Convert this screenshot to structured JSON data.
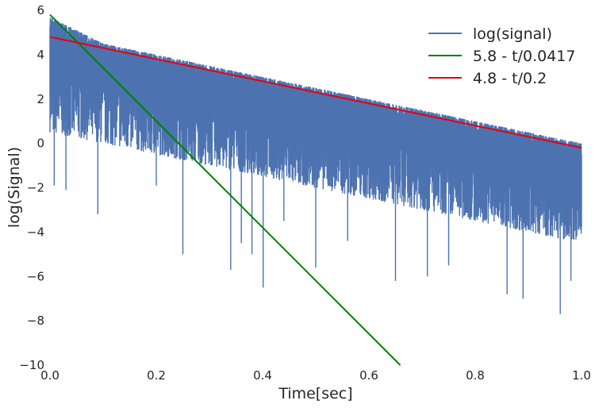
{
  "chart_data": {
    "type": "line",
    "xlabel": "Time[sec]",
    "ylabel": "log(Signal)",
    "xlim": [
      0.0,
      1.0
    ],
    "ylim": [
      -10,
      6
    ],
    "x_ticks": [
      "0.0",
      "0.2",
      "0.4",
      "0.6",
      "0.8",
      "1.0"
    ],
    "y_ticks": [
      "6",
      "4",
      "2",
      "0",
      "−2",
      "−4",
      "−6",
      "−8",
      "−10"
    ],
    "grid": false,
    "legend_position": "top-right",
    "series": [
      {
        "name": "log(signal)",
        "color": "#4c72b0",
        "envelope_x": [
          0.0,
          0.1,
          0.2,
          0.3,
          0.4,
          0.5,
          0.6,
          0.7,
          0.8,
          0.9,
          1.0
        ],
        "envelope_upper": [
          5.7,
          4.5,
          4.0,
          3.5,
          3.0,
          2.5,
          2.0,
          1.5,
          1.0,
          0.5,
          0.0
        ],
        "envelope_lower": [
          0.5,
          0.0,
          -0.5,
          -1.0,
          -1.5,
          -2.0,
          -2.5,
          -3.0,
          -3.5,
          -4.0,
          -4.5
        ],
        "spikes": [
          {
            "x": 0.008,
            "y": -1.9
          },
          {
            "x": 0.03,
            "y": -2.1
          },
          {
            "x": 0.09,
            "y": -3.2
          },
          {
            "x": 0.2,
            "y": -1.9
          },
          {
            "x": 0.25,
            "y": -5.0
          },
          {
            "x": 0.34,
            "y": -5.7
          },
          {
            "x": 0.36,
            "y": -4.5
          },
          {
            "x": 0.38,
            "y": -5.0
          },
          {
            "x": 0.401,
            "y": -6.5
          },
          {
            "x": 0.44,
            "y": -3.5
          },
          {
            "x": 0.5,
            "y": -5.6
          },
          {
            "x": 0.56,
            "y": -4.4
          },
          {
            "x": 0.65,
            "y": -6.2
          },
          {
            "x": 0.71,
            "y": -6.0
          },
          {
            "x": 0.75,
            "y": -5.5
          },
          {
            "x": 0.86,
            "y": -6.8
          },
          {
            "x": 0.89,
            "y": -7.0
          },
          {
            "x": 0.96,
            "y": -7.7
          },
          {
            "x": 0.98,
            "y": -6.2
          }
        ]
      },
      {
        "name": "5.8 - t/0.0417",
        "color": "#008000",
        "x": [
          0.0,
          0.659
        ],
        "y": [
          5.8,
          -10.0
        ]
      },
      {
        "name": "4.8 - t/0.2",
        "color": "#e8000b",
        "x": [
          0.0,
          1.0
        ],
        "y": [
          4.8,
          -0.2
        ]
      }
    ]
  }
}
